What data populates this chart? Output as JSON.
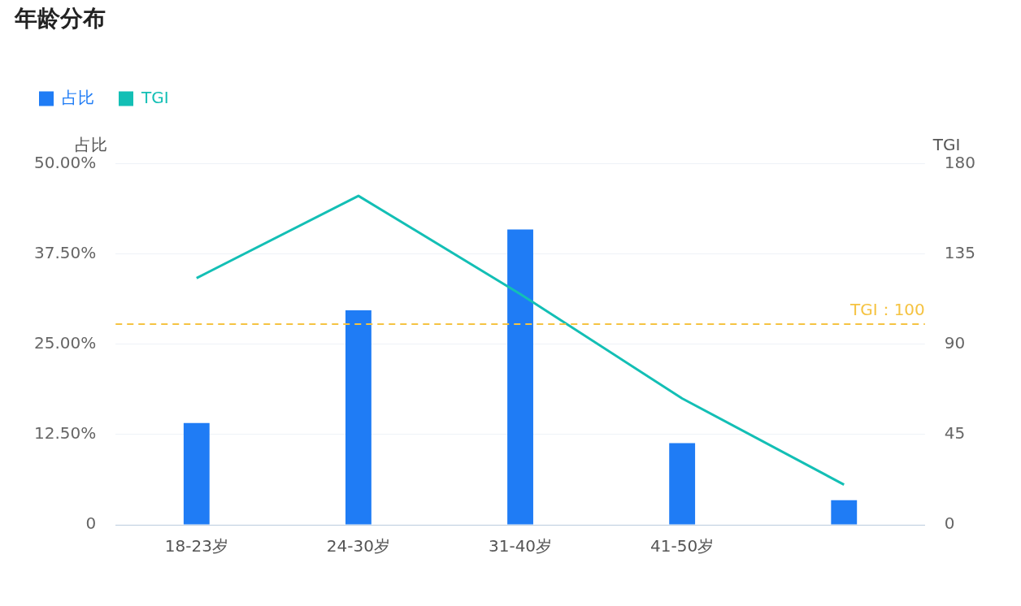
{
  "chart_data": {
    "type": "bar",
    "title": "年龄分布",
    "ylabel": "占比",
    "y2label": "TGI",
    "categories": [
      "18-23岁",
      "24-30岁",
      "31-40岁",
      "41-50岁",
      null
    ],
    "series": [
      {
        "name": "占比",
        "color": "#1f7cf5",
        "values": [
          14.1,
          29.7,
          40.9,
          11.3,
          3.4
        ]
      },
      {
        "name": "TGI",
        "type": "line",
        "axis": "y2",
        "color": "#13bfb5",
        "values": [
          123,
          164,
          115,
          63,
          20
        ],
        "marker": "none"
      }
    ],
    "ylim": [
      0,
      50
    ],
    "yticks": [
      {
        "value": 0,
        "label": "0"
      },
      {
        "value": 12.5,
        "label": "12.50%"
      },
      {
        "value": 25,
        "label": "25.00%"
      },
      {
        "value": 37.5,
        "label": "37.50%"
      },
      {
        "value": 50,
        "label": "50.00%"
      }
    ],
    "y2lim": [
      0,
      180
    ],
    "y2ticks": [
      0,
      45,
      90,
      135,
      180
    ],
    "ref_lines": [
      {
        "axis": "y2",
        "value": 100,
        "label": "TGI：100",
        "color": "#f5c342",
        "line_style": "dashed"
      }
    ],
    "grid": "y",
    "legend": "top left"
  }
}
